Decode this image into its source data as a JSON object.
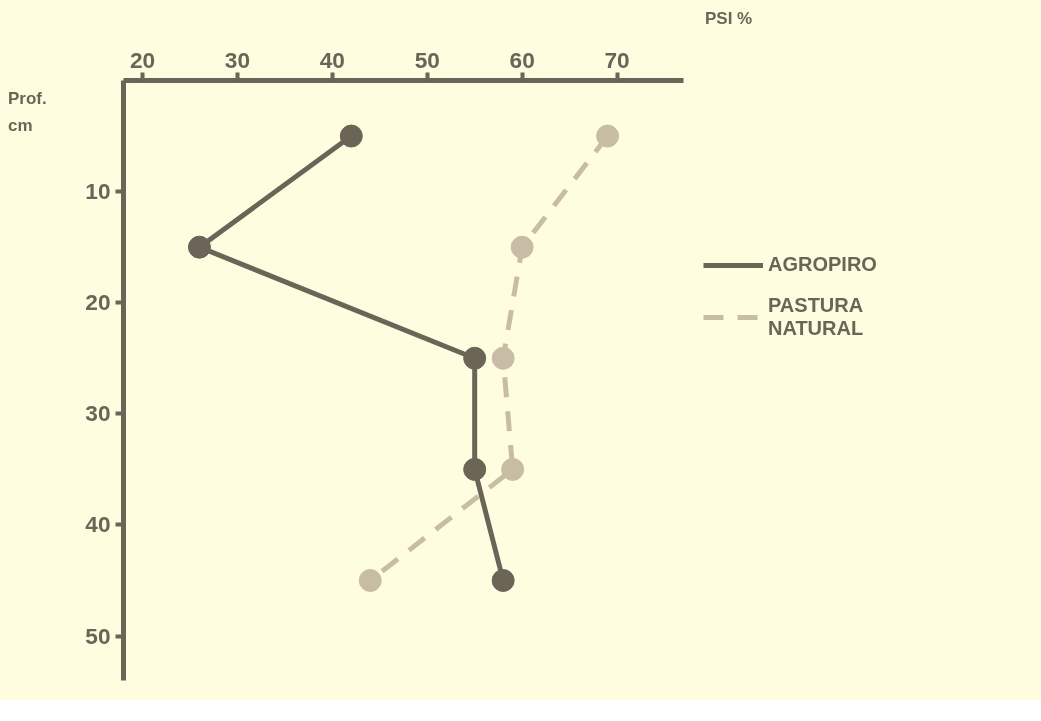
{
  "chart_data": {
    "type": "line",
    "xlabel": "PSI %",
    "ylabel": "Prof.\ncm",
    "xlim": [
      18,
      77
    ],
    "xticks": [
      20,
      30,
      40,
      50,
      60,
      70
    ],
    "ylim": [
      54,
      0
    ],
    "yticks": [
      10,
      20,
      30,
      40,
      50
    ],
    "grid": false,
    "legend": "right",
    "marker": "circle",
    "series": [
      {
        "name": "AGROPIRO",
        "color": "#6b6558",
        "line_style": "solid",
        "x": [
          42,
          26,
          55,
          55,
          58
        ],
        "values": [
          5,
          15,
          25,
          35,
          45
        ]
      },
      {
        "name": "PASTURA\nNATURAL",
        "color": "#c9bca5",
        "line_style": "dashed",
        "x": [
          69,
          60,
          58,
          59,
          44
        ],
        "values": [
          5,
          15,
          25,
          35,
          45
        ]
      }
    ]
  }
}
